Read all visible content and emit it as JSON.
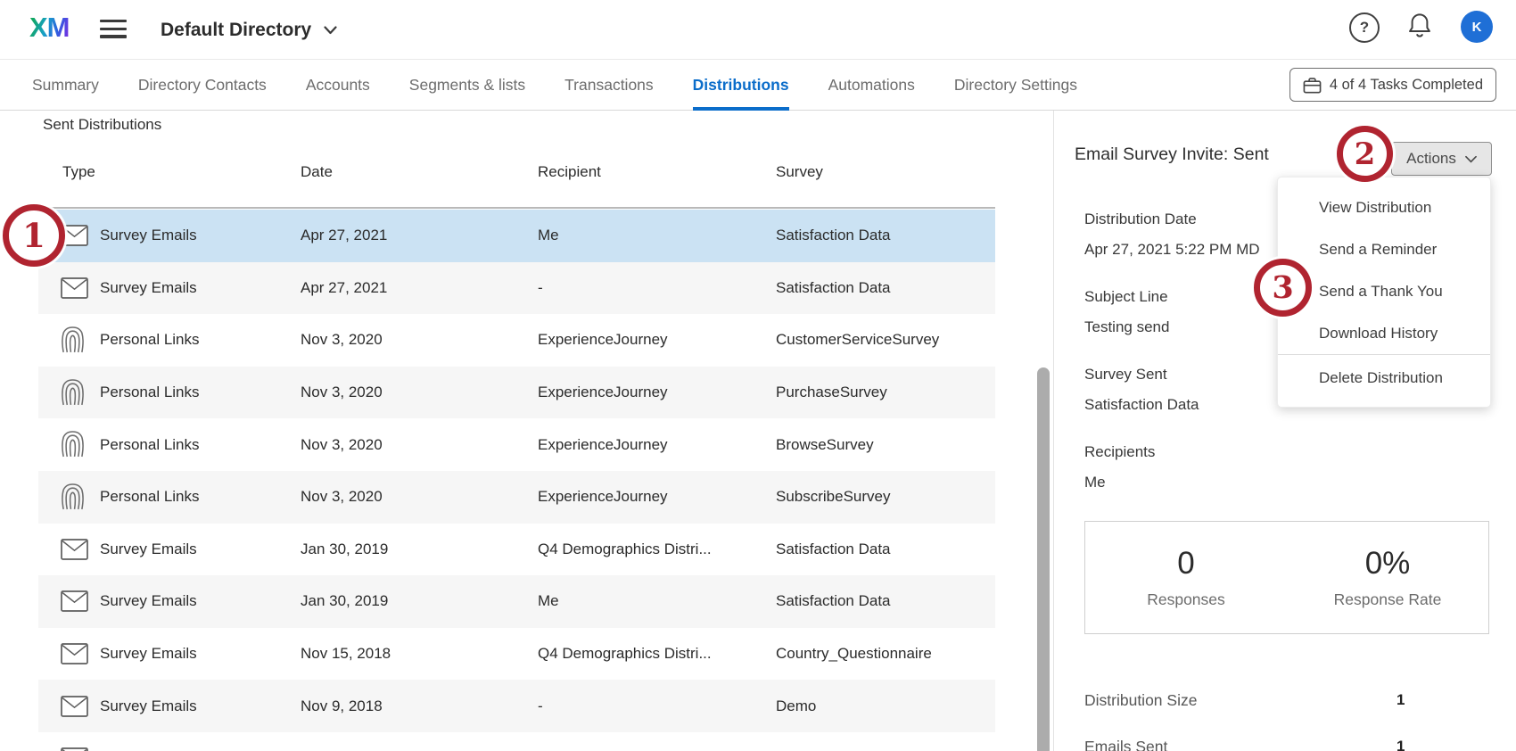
{
  "topbar": {
    "brand": "XM",
    "directory_label": "Default Directory",
    "help_glyph": "?",
    "avatar_initial": "K"
  },
  "tabs": {
    "items": [
      {
        "label": "Summary",
        "active": false
      },
      {
        "label": "Directory Contacts",
        "active": false
      },
      {
        "label": "Accounts",
        "active": false
      },
      {
        "label": "Segments & lists",
        "active": false
      },
      {
        "label": "Transactions",
        "active": false
      },
      {
        "label": "Distributions",
        "active": true
      },
      {
        "label": "Automations",
        "active": false
      },
      {
        "label": "Directory Settings",
        "active": false
      }
    ],
    "tasks_button_label": "4 of 4 Tasks Completed"
  },
  "table": {
    "section_title": "Sent Distributions",
    "columns": [
      "Type",
      "Date",
      "Recipient",
      "Survey"
    ],
    "rows": [
      {
        "icon": "mail-icon",
        "type": "Survey Emails",
        "date": "Apr 27, 2021",
        "recipient": "Me",
        "survey": "Satisfaction Data",
        "selected": true
      },
      {
        "icon": "mail-icon",
        "type": "Survey Emails",
        "date": "Apr 27, 2021",
        "recipient": "-",
        "survey": "Satisfaction Data",
        "selected": false
      },
      {
        "icon": "fingerprint-icon",
        "type": "Personal Links",
        "date": "Nov 3, 2020",
        "recipient": "ExperienceJourney",
        "survey": "CustomerServiceSurvey",
        "selected": false
      },
      {
        "icon": "fingerprint-icon",
        "type": "Personal Links",
        "date": "Nov 3, 2020",
        "recipient": "ExperienceJourney",
        "survey": "PurchaseSurvey",
        "selected": false
      },
      {
        "icon": "fingerprint-icon",
        "type": "Personal Links",
        "date": "Nov 3, 2020",
        "recipient": "ExperienceJourney",
        "survey": "BrowseSurvey",
        "selected": false
      },
      {
        "icon": "fingerprint-icon",
        "type": "Personal Links",
        "date": "Nov 3, 2020",
        "recipient": "ExperienceJourney",
        "survey": "SubscribeSurvey",
        "selected": false
      },
      {
        "icon": "mail-icon",
        "type": "Survey Emails",
        "date": "Jan 30, 2019",
        "recipient": "Q4 Demographics Distri...",
        "survey": "Satisfaction Data",
        "selected": false
      },
      {
        "icon": "mail-icon",
        "type": "Survey Emails",
        "date": "Jan 30, 2019",
        "recipient": "Me",
        "survey": "Satisfaction Data",
        "selected": false
      },
      {
        "icon": "mail-icon",
        "type": "Survey Emails",
        "date": "Nov 15, 2018",
        "recipient": "Q4 Demographics Distri...",
        "survey": "Country_Questionnaire",
        "selected": false
      },
      {
        "icon": "mail-icon",
        "type": "Survey Emails",
        "date": "Nov 9, 2018",
        "recipient": "-",
        "survey": "Demo",
        "selected": false
      }
    ],
    "partial_row_icon": "mail-icon"
  },
  "panel": {
    "title": "Email Survey Invite: Sent",
    "actions_label": "Actions",
    "menu": {
      "items": [
        "View Distribution",
        "Send a Reminder",
        "Send a Thank You",
        "Download History"
      ],
      "danger_item": "Delete Distribution"
    },
    "details": [
      {
        "label": "Distribution Date",
        "value": "Apr 27, 2021 5:22 PM MD"
      },
      {
        "label": "Subject Line",
        "value": "Testing send"
      },
      {
        "label": "Survey Sent",
        "value": "Satisfaction Data"
      },
      {
        "label": "Recipients",
        "value": "Me"
      }
    ],
    "stats": [
      {
        "value": "0",
        "label": "Responses"
      },
      {
        "value": "0%",
        "label": "Response Rate"
      }
    ],
    "metrics": [
      {
        "label": "Distribution Size",
        "value": "1"
      },
      {
        "label": "Emails Sent",
        "value": "1"
      }
    ]
  },
  "annotations": [
    {
      "number": "1"
    },
    {
      "number": "2"
    },
    {
      "number": "3"
    }
  ],
  "colors": {
    "accent_blue": "#0b6dca",
    "selected_row": "#cbe2f3",
    "annotation_red": "#b02430",
    "avatar_blue": "#1f6fd6"
  }
}
